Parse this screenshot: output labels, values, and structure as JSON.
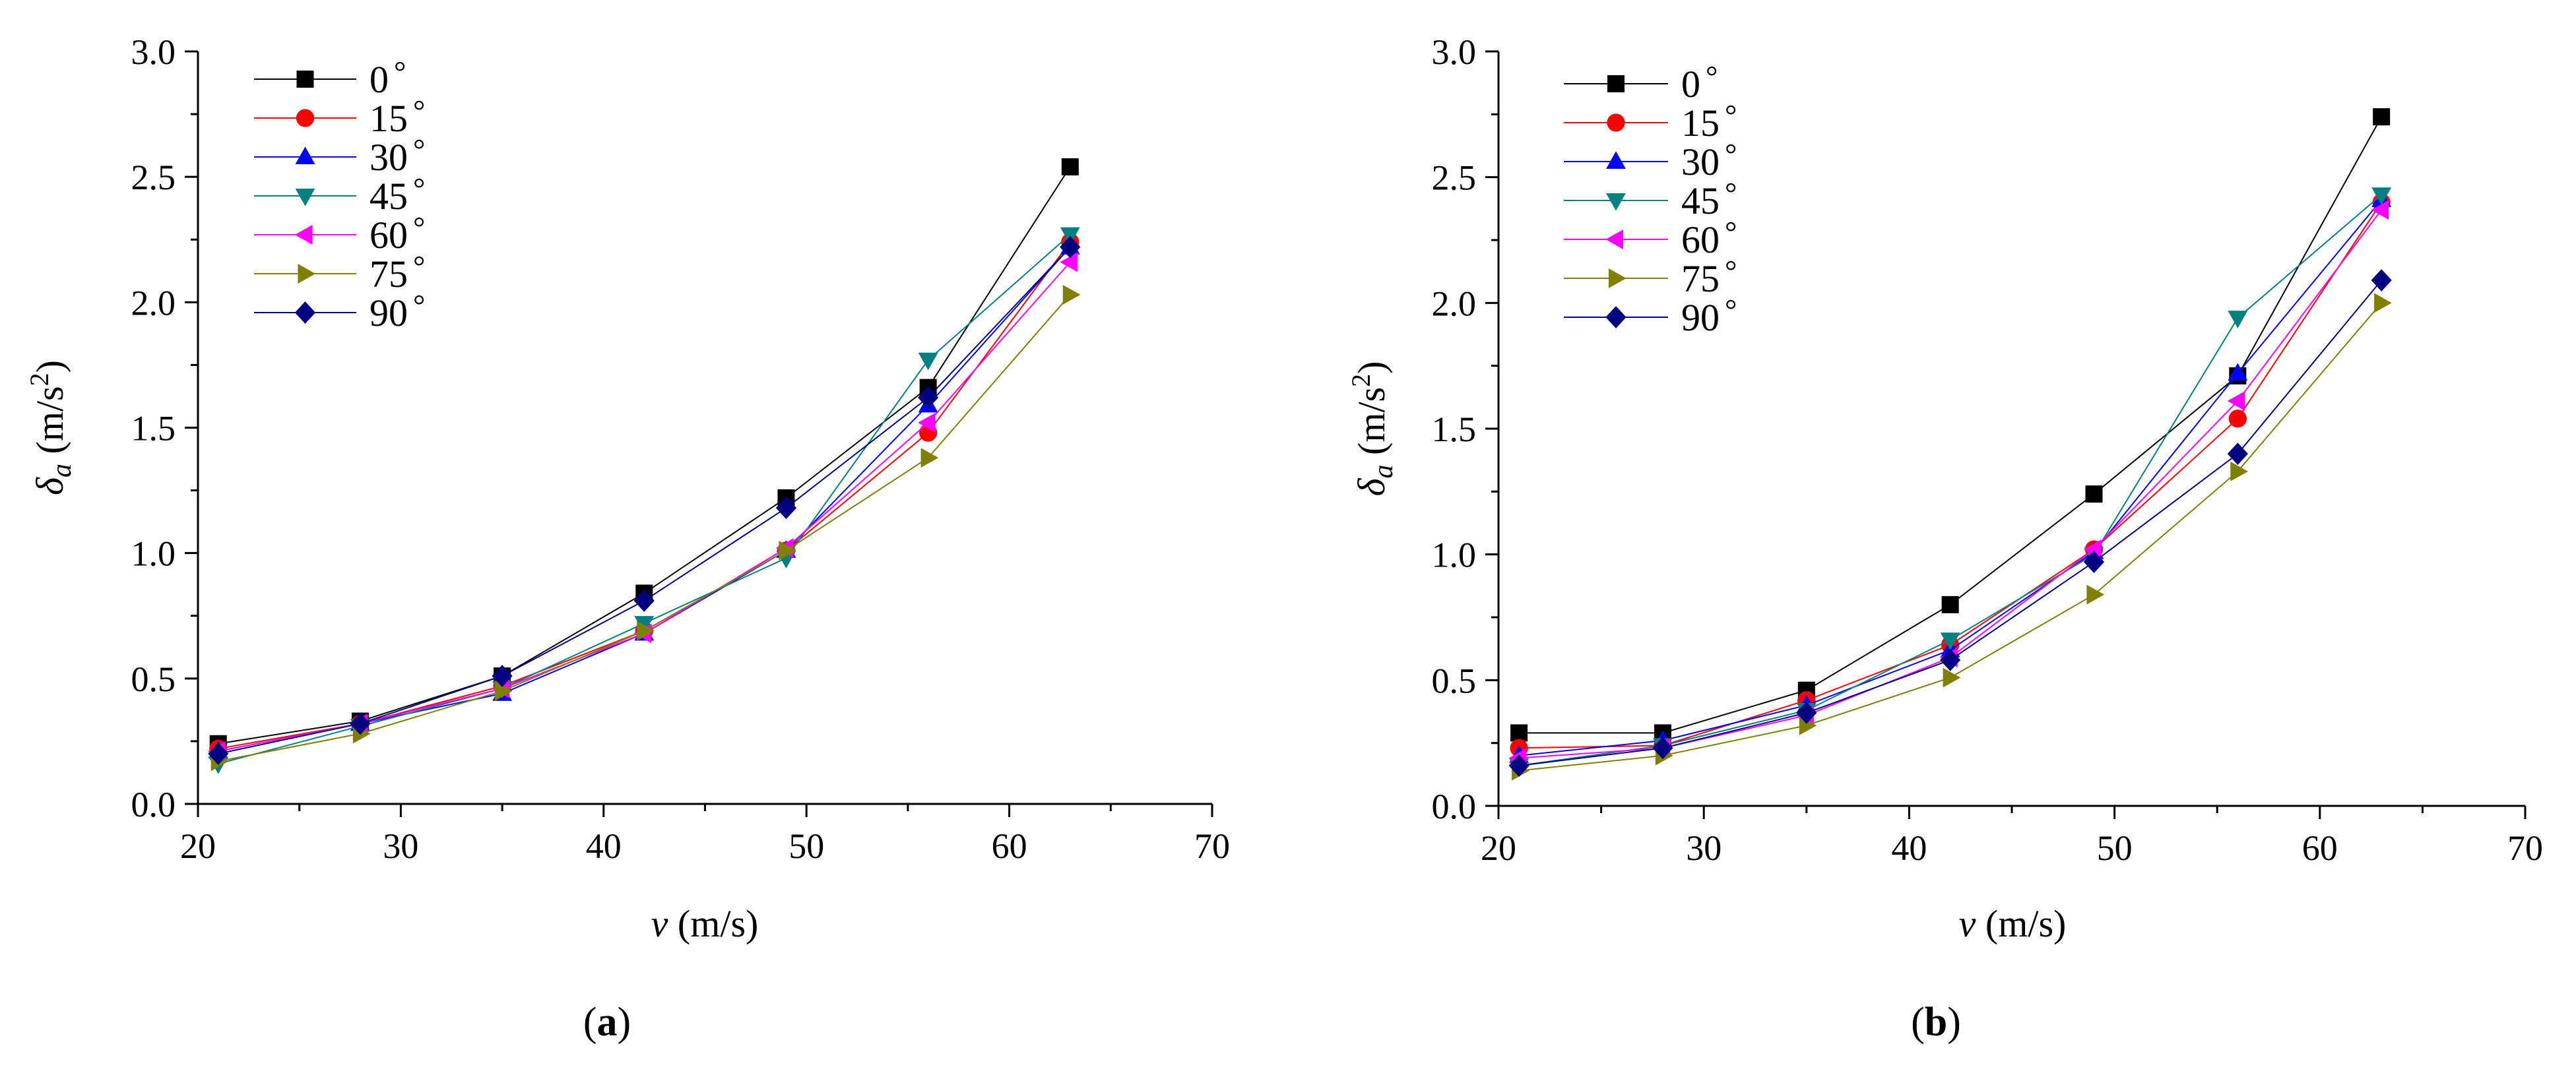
{
  "chart_data": [
    {
      "type": "line",
      "panel_label": "a",
      "xlabel": {
        "italic": "v",
        "unit": " (m/s)"
      },
      "ylabel": {
        "italic": "δ",
        "sub": "a",
        "unit_pre": " (m/s",
        "sup": "2",
        "unit_post": ")"
      },
      "xlim": [
        20,
        70
      ],
      "ylim": [
        0,
        3.0
      ],
      "xticks": [
        "20",
        "30",
        "40",
        "50",
        "60",
        "70"
      ],
      "yticks": [
        "0.0",
        "0.5",
        "1.0",
        "1.5",
        "2.0",
        "2.5",
        "3.0"
      ],
      "legend_position": "top-left",
      "x": [
        21,
        28,
        35,
        42,
        49,
        56,
        63
      ],
      "series": [
        {
          "name": "0°",
          "label": "0",
          "marker": "square",
          "color": "#000000",
          "values": [
            0.24,
            0.33,
            0.51,
            0.84,
            1.22,
            1.66,
            2.54
          ]
        },
        {
          "name": "15°",
          "label": "15",
          "marker": "circle",
          "color": "#ff0000",
          "values": [
            0.22,
            0.32,
            0.47,
            0.69,
            1.01,
            1.48,
            2.24
          ]
        },
        {
          "name": "30°",
          "label": "30",
          "marker": "triangle-up",
          "color": "#0000ff",
          "values": [
            0.21,
            0.32,
            0.44,
            0.68,
            1.01,
            1.59,
            2.22
          ]
        },
        {
          "name": "45°",
          "label": "45",
          "marker": "triangle-down",
          "color": "#008080",
          "values": [
            0.16,
            0.31,
            0.46,
            0.72,
            0.98,
            1.77,
            2.27
          ]
        },
        {
          "name": "60°",
          "label": "60",
          "marker": "triangle-left",
          "color": "#ff00ff",
          "values": [
            0.21,
            0.32,
            0.46,
            0.68,
            1.02,
            1.52,
            2.16
          ]
        },
        {
          "name": "75°",
          "label": "75",
          "marker": "triangle-right",
          "color": "#808000",
          "values": [
            0.17,
            0.28,
            0.45,
            0.69,
            1.01,
            1.38,
            2.03
          ]
        },
        {
          "name": "90°",
          "label": "90",
          "marker": "diamond",
          "color": "#000080",
          "values": [
            0.2,
            0.32,
            0.51,
            0.81,
            1.18,
            1.62,
            2.22
          ]
        }
      ]
    },
    {
      "type": "line",
      "panel_label": "b",
      "xlabel": {
        "italic": "v",
        "unit": " (m/s)"
      },
      "ylabel": {
        "italic": "δ",
        "sub": "a",
        "unit_pre": " (m/s",
        "sup": "2",
        "unit_post": ")"
      },
      "xlim": [
        20,
        70
      ],
      "ylim": [
        0,
        3.0
      ],
      "xticks": [
        "20",
        "30",
        "40",
        "50",
        "60",
        "70"
      ],
      "yticks": [
        "0.0",
        "0.5",
        "1.0",
        "1.5",
        "2.0",
        "2.5",
        "3.0"
      ],
      "legend_position": "top-left",
      "x": [
        21,
        28,
        35,
        42,
        49,
        56,
        63
      ],
      "series": [
        {
          "name": "0°",
          "label": "0",
          "marker": "square",
          "color": "#000000",
          "values": [
            0.29,
            0.29,
            0.46,
            0.8,
            1.24,
            1.71,
            2.74
          ]
        },
        {
          "name": "15°",
          "label": "15",
          "marker": "circle",
          "color": "#ff0000",
          "values": [
            0.23,
            0.24,
            0.42,
            0.64,
            1.02,
            1.54,
            2.4
          ]
        },
        {
          "name": "30°",
          "label": "30",
          "marker": "triangle-up",
          "color": "#0000ff",
          "values": [
            0.2,
            0.26,
            0.4,
            0.62,
            1.01,
            1.72,
            2.41
          ]
        },
        {
          "name": "45°",
          "label": "45",
          "marker": "triangle-down",
          "color": "#008080",
          "values": [
            0.16,
            0.24,
            0.38,
            0.66,
            1.0,
            1.94,
            2.43
          ]
        },
        {
          "name": "60°",
          "label": "60",
          "marker": "triangle-left",
          "color": "#ff00ff",
          "values": [
            0.19,
            0.23,
            0.36,
            0.59,
            1.02,
            1.61,
            2.37
          ]
        },
        {
          "name": "75°",
          "label": "75",
          "marker": "triangle-right",
          "color": "#808000",
          "values": [
            0.14,
            0.2,
            0.32,
            0.51,
            0.84,
            1.33,
            2.0
          ]
        },
        {
          "name": "90°",
          "label": "90",
          "marker": "diamond",
          "color": "#000080",
          "values": [
            0.16,
            0.23,
            0.37,
            0.58,
            0.97,
            1.4,
            2.09
          ]
        }
      ]
    }
  ]
}
